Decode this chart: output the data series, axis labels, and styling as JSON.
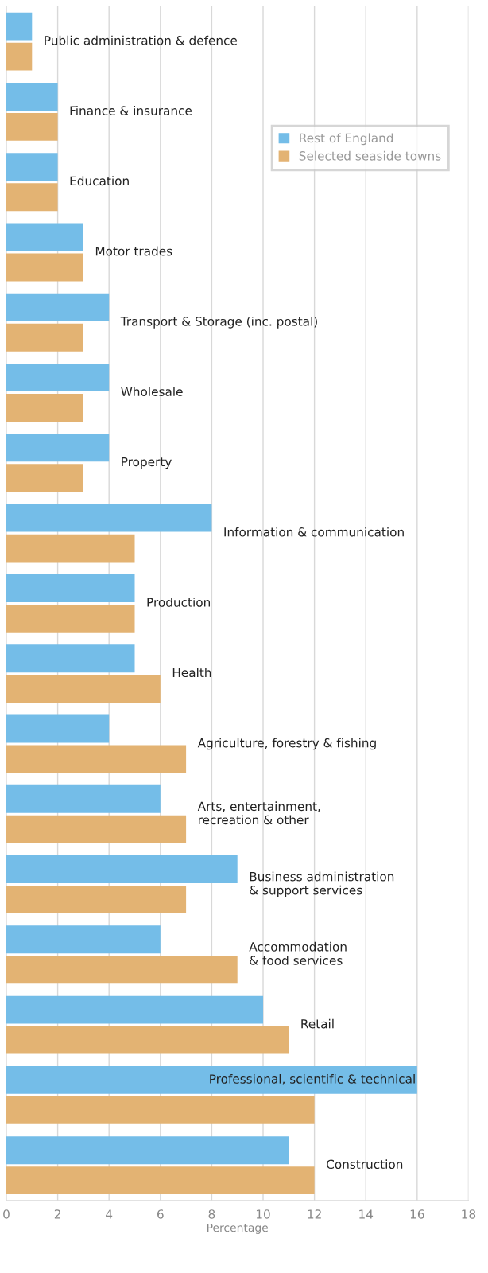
{
  "chart_data": {
    "type": "bar",
    "orientation": "horizontal",
    "categories": [
      "Public administration & defence",
      "Finance & insurance",
      "Education",
      "Motor trades",
      "Transport & Storage (inc. postal)",
      "Wholesale",
      "Property",
      "Information & communication",
      "Production",
      "Health",
      "Agriculture, forestry & fishing",
      "Arts, entertainment,\nrecreation & other",
      "Business administration\n& support services",
      "Accommodation\n& food services",
      "Retail",
      "Professional, scientific & technical",
      "Construction"
    ],
    "series": [
      {
        "name": "Rest of England",
        "color": "#74bde8",
        "values": [
          1,
          2,
          2,
          3,
          4,
          4,
          4,
          8,
          5,
          5,
          4,
          6,
          9,
          6,
          10,
          16,
          11
        ]
      },
      {
        "name": "Selected seaside towns",
        "color": "#e3b373",
        "values": [
          1,
          2,
          2,
          3,
          3,
          3,
          3,
          5,
          5,
          6,
          7,
          7,
          7,
          9,
          11,
          12,
          12
        ]
      }
    ],
    "xlabel": "Percentage",
    "xlim": [
      0,
      18
    ],
    "xticks": [
      0,
      2,
      4,
      6,
      8,
      10,
      12,
      14,
      16,
      18
    ],
    "grid": "x",
    "legend": "top right"
  }
}
